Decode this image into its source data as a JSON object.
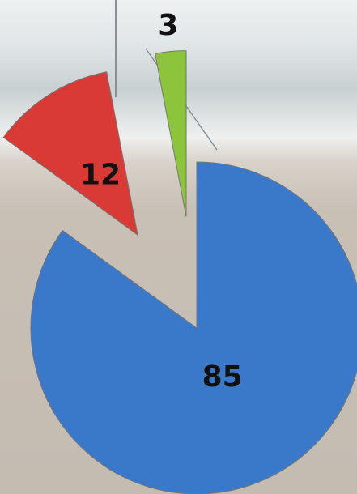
{
  "chart_data": {
    "type": "pie",
    "values": [
      85,
      12,
      3
    ],
    "colors": [
      "#3a78c9",
      "#d93a35",
      "#8cc43c"
    ]
  }
}
